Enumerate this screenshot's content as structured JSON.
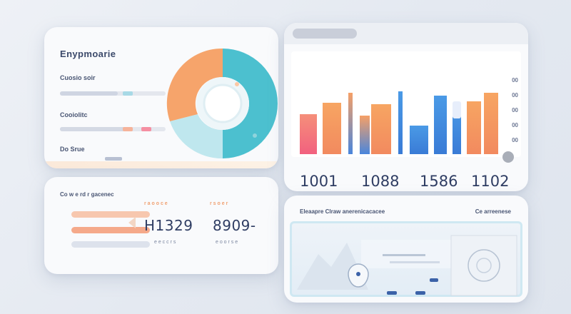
{
  "overview": {
    "title": "Enypmoarie",
    "labels": [
      "Cuosio soir",
      "Cooiolitc",
      "Do Srue"
    ],
    "bar_fills": [
      0.55,
      0.62,
      0.38
    ]
  },
  "stats": {
    "title": "Co w e rd r gacenec",
    "kpis": [
      {
        "label": "r a o o c e",
        "value": "H1329",
        "sub": "e e c c r s"
      },
      {
        "label": "r s o e r",
        "value": "8909-",
        "sub": "e o o r s e"
      }
    ]
  },
  "bars": {
    "y_ticks": [
      "00",
      "00",
      "00",
      "00",
      "00"
    ],
    "values": [
      {
        "value": "1001",
        "color": "#3ec6d0"
      },
      {
        "value": "1088",
        "color": "#3e64b2"
      },
      {
        "value": "1586",
        "color": "#c5cbd6"
      },
      {
        "value": "1102",
        "color": "#c5cbd6"
      }
    ]
  },
  "map": {
    "title": "Eleaapre Clraw anerenicacacee",
    "right_label": "Ce arreenese"
  },
  "colors": {
    "orange": "#f39a5e",
    "teal": "#4cc0cf",
    "blue": "#3b8ee0",
    "navy": "#2f3d63"
  }
}
